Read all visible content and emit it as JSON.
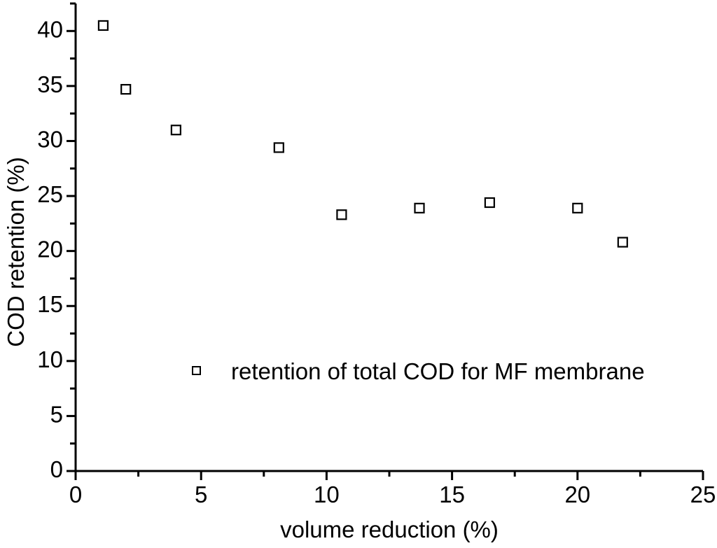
{
  "colors": {
    "background": "#ffffff",
    "foreground": "#000000",
    "marker_fill": "#ffffff"
  },
  "chart_data": {
    "type": "scatter",
    "title": "",
    "xlabel": "volume reduction (%)",
    "ylabel": "COD retention (%)",
    "xlim": [
      0,
      25
    ],
    "ylim": [
      0,
      42.5
    ],
    "x_major_ticks": [
      0,
      5,
      10,
      15,
      20,
      25
    ],
    "y_major_ticks": [
      0,
      5,
      10,
      15,
      20,
      25,
      30,
      35,
      40
    ],
    "minor_tick_step": 2.5,
    "grid": false,
    "legend": {
      "label": "retention of total COD for MF membrane",
      "marker": "open-square",
      "position": "inside-lower-center"
    },
    "series": [
      {
        "name": "retention of total COD for MF membrane",
        "marker": "open-square",
        "color": "#000000",
        "points": [
          {
            "x": 1.1,
            "y": 40.5
          },
          {
            "x": 2.0,
            "y": 34.7
          },
          {
            "x": 4.0,
            "y": 31.0
          },
          {
            "x": 8.1,
            "y": 29.4
          },
          {
            "x": 10.6,
            "y": 23.3
          },
          {
            "x": 13.7,
            "y": 23.9
          },
          {
            "x": 16.5,
            "y": 24.4
          },
          {
            "x": 20.0,
            "y": 23.9
          },
          {
            "x": 21.8,
            "y": 20.8
          }
        ]
      }
    ]
  }
}
